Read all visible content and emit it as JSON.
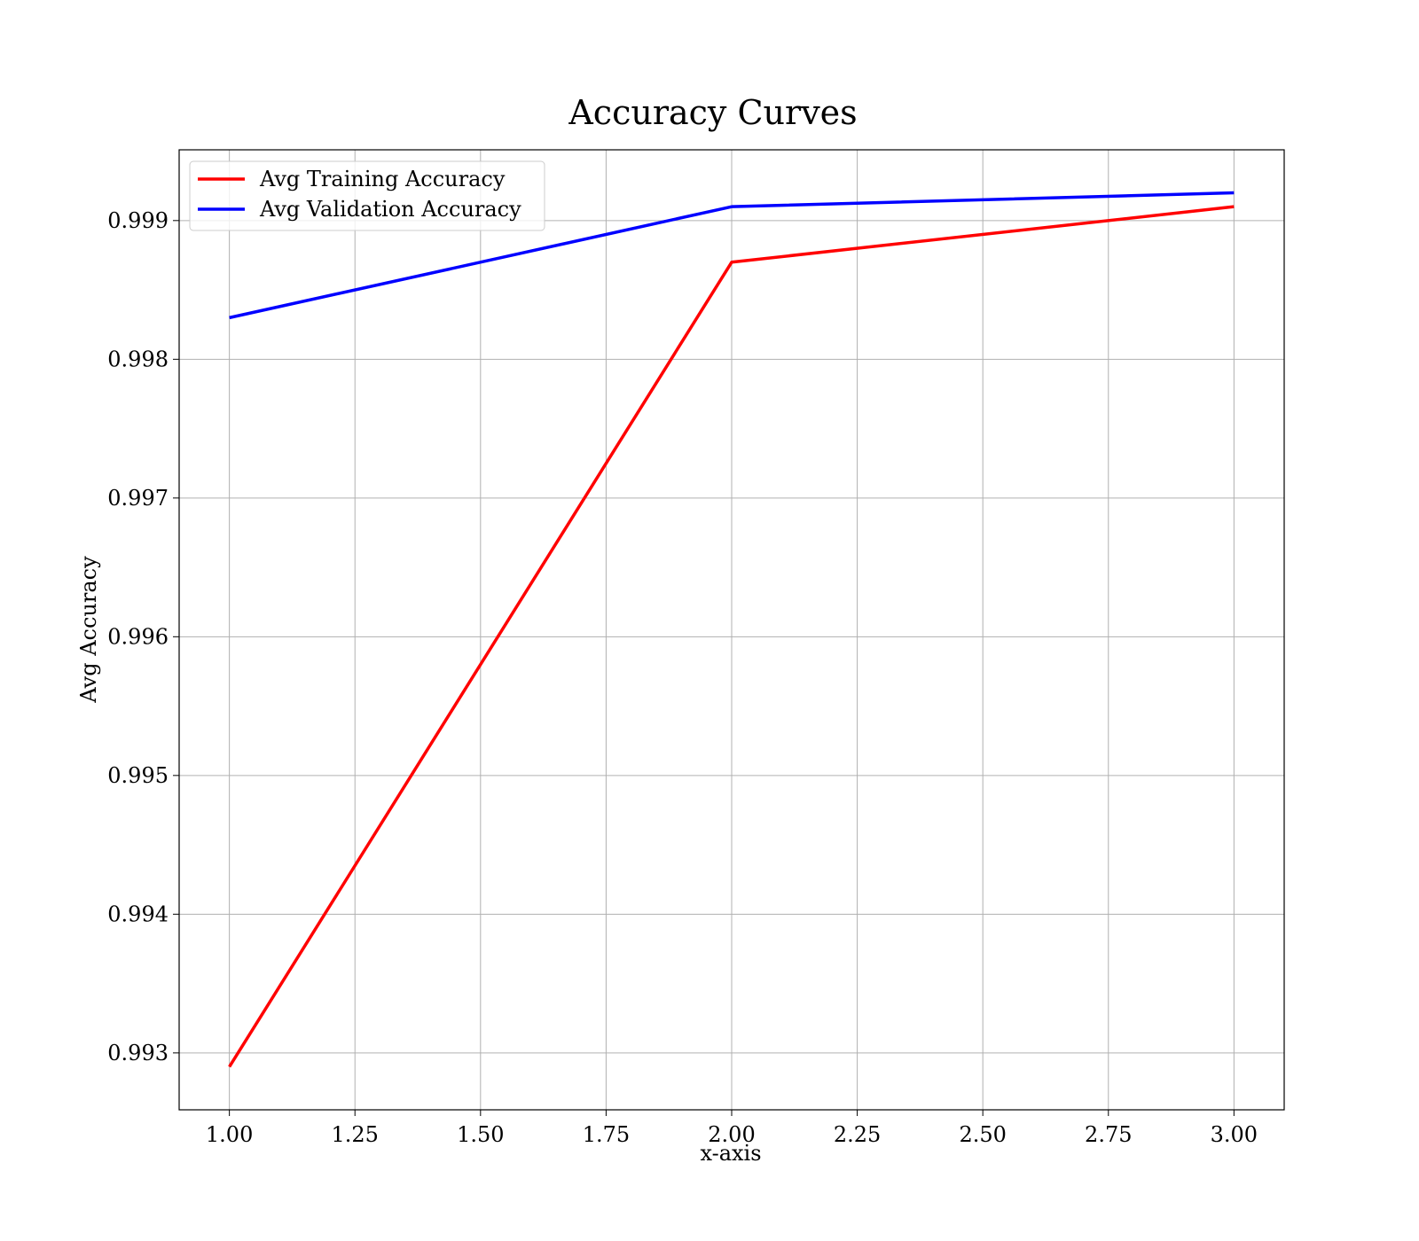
{
  "chart_data": {
    "type": "line",
    "title": "Accuracy Curves",
    "xlabel": "x-axis",
    "ylabel": "Avg Accuracy",
    "x": [
      1,
      2,
      3
    ],
    "xlim": [
      0.9,
      3.1
    ],
    "ylim": [
      0.99259,
      0.99951
    ],
    "xticks": [
      1.0,
      1.25,
      1.5,
      1.75,
      2.0,
      2.25,
      2.5,
      2.75,
      3.0
    ],
    "xtick_labels": [
      "1.00",
      "1.25",
      "1.50",
      "1.75",
      "2.00",
      "2.25",
      "2.50",
      "2.75",
      "3.00"
    ],
    "yticks": [
      0.993,
      0.994,
      0.995,
      0.996,
      0.997,
      0.998,
      0.999
    ],
    "ytick_labels": [
      "0.993",
      "0.994",
      "0.995",
      "0.996",
      "0.997",
      "0.998",
      "0.999"
    ],
    "grid": true,
    "legend_position": "top-left",
    "series": [
      {
        "name": "Avg Training Accuracy",
        "color": "#ff0000",
        "values": [
          0.9929,
          0.9987,
          0.9991
        ]
      },
      {
        "name": "Avg Validation Accuracy",
        "color": "#0000ff",
        "values": [
          0.9983,
          0.9991,
          0.9992
        ]
      }
    ]
  }
}
